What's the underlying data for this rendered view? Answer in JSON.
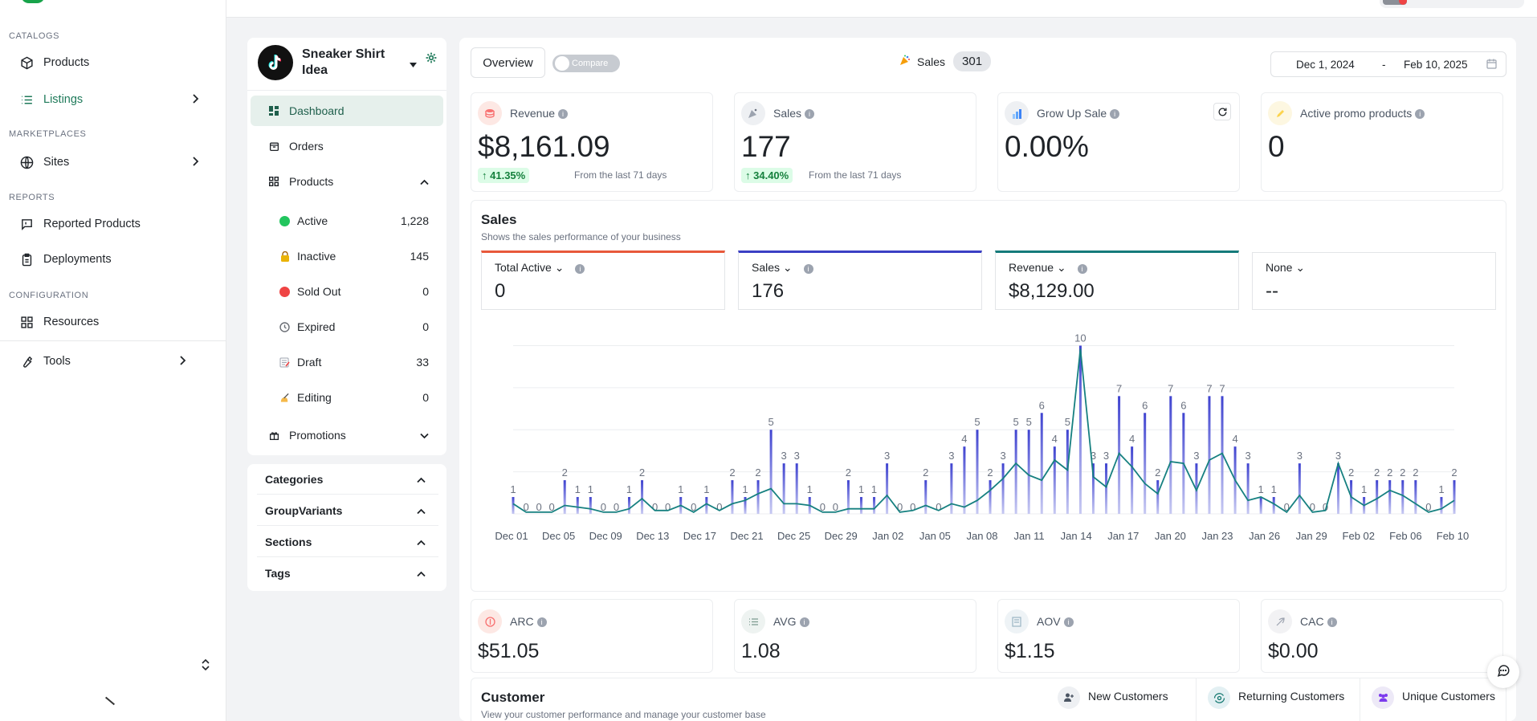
{
  "sidebar": {
    "sections": [
      {
        "label": "CATALOGS",
        "items": [
          {
            "label": "Products",
            "icon": "box-icon"
          },
          {
            "label": "Listings",
            "icon": "list-icon",
            "active": true,
            "chevron": true
          }
        ]
      },
      {
        "label": "MARKETPLACES",
        "items": [
          {
            "label": "Sites",
            "icon": "globe-icon",
            "chevron": true
          }
        ]
      },
      {
        "label": "REPORTS",
        "items": [
          {
            "label": "Reported Products",
            "icon": "flag-message-icon"
          },
          {
            "label": "Deployments",
            "icon": "clipboard-icon"
          }
        ]
      },
      {
        "label": "CONFIGURATION",
        "items": [
          {
            "label": "Resources",
            "icon": "grid-icon"
          }
        ]
      }
    ],
    "tools": {
      "label": "Tools",
      "icon": "wrench-icon"
    }
  },
  "shop": {
    "name": "Sneaker Shirt Idea",
    "platform_icon": "tiktok-logo-icon",
    "nav": [
      {
        "label": "Dashboard",
        "active": true
      },
      {
        "label": "Orders"
      },
      {
        "label": "Products",
        "expanded": true
      }
    ],
    "statuses": [
      {
        "label": "Active",
        "count": "1,228",
        "icon": "green-dot",
        "color": "#22c55e"
      },
      {
        "label": "Inactive",
        "count": "145",
        "icon": "lock-icon"
      },
      {
        "label": "Sold Out",
        "count": "0",
        "icon": "red-dot",
        "color": "#ef4444"
      },
      {
        "label": "Expired",
        "count": "0",
        "icon": "clock-icon"
      },
      {
        "label": "Draft",
        "count": "33",
        "icon": "memo-icon"
      },
      {
        "label": "Editing",
        "count": "0",
        "icon": "writing-hand-icon"
      }
    ],
    "promotions": {
      "label": "Promotions"
    }
  },
  "filters": [
    {
      "label": "Categories"
    },
    {
      "label": "GroupVariants"
    },
    {
      "label": "Sections"
    },
    {
      "label": "Tags"
    }
  ],
  "toolbar": {
    "overview_label": "Overview",
    "compare_label": "Compare",
    "sales_label": "Sales",
    "sales_count": "301",
    "date_start": "Dec 1, 2024",
    "date_sep": "-",
    "date_end": "Feb 10, 2025"
  },
  "kpis": [
    {
      "label": "Revenue",
      "value": "$8,161.09",
      "delta": "41.35%",
      "note": "From the last 71 days",
      "icon": "coins-icon",
      "icon_bg": "#fde8e4"
    },
    {
      "label": "Sales",
      "value": "177",
      "delta": "34.40%",
      "note": "From the last 71 days",
      "icon": "party-popper-icon",
      "icon_bg": "#eef0f3"
    },
    {
      "label": "Grow Up Sale",
      "value": "0.00%",
      "icon": "bar-chart-icon",
      "icon_bg": "#eef0f3",
      "refresh": true
    },
    {
      "label": "Active promo products",
      "value": "0",
      "icon": "pencil-icon",
      "icon_bg": "#fdf7e1"
    }
  ],
  "sales_section": {
    "title": "Sales",
    "subtitle": "Shows the sales performance of your business",
    "metric_tabs": [
      {
        "label": "Total Active",
        "value": "0",
        "color": "#e8593b",
        "info": true
      },
      {
        "label": "Sales",
        "value": "176",
        "color": "#3b3fc4",
        "info": true
      },
      {
        "label": "Revenue",
        "value": "$8,129.00",
        "color": "#157a7a",
        "info": true
      },
      {
        "label": "None",
        "value": "--",
        "color": "#e3e5e8",
        "info": false
      }
    ]
  },
  "chart_data": {
    "type": "bar",
    "x_tick_labels": [
      "Dec 01",
      "Dec 05",
      "Dec 09",
      "Dec 13",
      "Dec 17",
      "Dec 21",
      "Dec 25",
      "Dec 29",
      "Jan 02",
      "Jan 05",
      "Jan 08",
      "Jan 11",
      "Jan 14",
      "Jan 17",
      "Jan 20",
      "Jan 23",
      "Jan 26",
      "Jan 29",
      "Feb 02",
      "Feb 06",
      "Feb 10"
    ],
    "bar_values": [
      1,
      0,
      0,
      0,
      2,
      1,
      1,
      0,
      0,
      1,
      2,
      0,
      0,
      1,
      0,
      1,
      0,
      2,
      1,
      2,
      5,
      3,
      3,
      1,
      0,
      0,
      2,
      1,
      1,
      3,
      0,
      0,
      2,
      0,
      3,
      4,
      5,
      2,
      3,
      5,
      5,
      6,
      4,
      5,
      10,
      3,
      3,
      7,
      4,
      6,
      2,
      7,
      6,
      3,
      7,
      7,
      4,
      3,
      1,
      1,
      0,
      3,
      0,
      0,
      3,
      2,
      1,
      2,
      2,
      2,
      2,
      0,
      1,
      2
    ],
    "line_values": [
      0.6,
      0.1,
      0.1,
      0.1,
      0.5,
      0.4,
      0.3,
      0.1,
      0.1,
      0.3,
      0.9,
      0.2,
      0.2,
      0.5,
      0.1,
      0.6,
      0.2,
      0.6,
      0.8,
      1.2,
      1.5,
      0.6,
      0.6,
      0.5,
      0.1,
      0.1,
      0.3,
      0.3,
      0.3,
      1.1,
      0.1,
      0.2,
      0.5,
      0.2,
      0.6,
      0.4,
      0.8,
      1.4,
      2.1,
      3.0,
      2.3,
      2.0,
      3.2,
      2.6,
      9.8,
      2.2,
      1.6,
      3.6,
      2.8,
      1.8,
      1.2,
      3.1,
      3.0,
      1.4,
      3.2,
      3.6,
      2.0,
      0.8,
      1.0,
      0.6,
      0.1,
      1.1,
      0.1,
      0.2,
      3.0,
      1.0,
      0.5,
      0.9,
      1.4,
      1.1,
      0.6,
      0.1,
      0.3,
      0.8
    ],
    "series": [
      {
        "name": "Sales",
        "color": "#4b4fd6"
      },
      {
        "name": "Revenue",
        "color": "#168080"
      }
    ],
    "ylim": [
      0,
      10.5
    ],
    "grid": true
  },
  "kpis2": [
    {
      "label": "ARC",
      "value": "$51.05",
      "icon": "circle-dollar-icon",
      "icon_bg": "#fde8e4"
    },
    {
      "label": "AVG",
      "value": "1.08",
      "icon": "list-check-icon",
      "icon_bg": "#eef3f1"
    },
    {
      "label": "AOV",
      "value": "$1.15",
      "icon": "receipt-icon",
      "icon_bg": "#eef3f6"
    },
    {
      "label": "CAC",
      "value": "$0.00",
      "icon": "feather-icon",
      "icon_bg": "#f2f2f4"
    }
  ],
  "customer": {
    "title": "Customer",
    "subtitle": "View your customer performance and manage your customer base",
    "tabs": [
      {
        "label": "New Customers",
        "icon": "user-plus-icon"
      },
      {
        "label": "Returning Customers",
        "icon": "refresh-eye-icon"
      },
      {
        "label": "Unique Customers",
        "icon": "users-icon"
      }
    ]
  }
}
